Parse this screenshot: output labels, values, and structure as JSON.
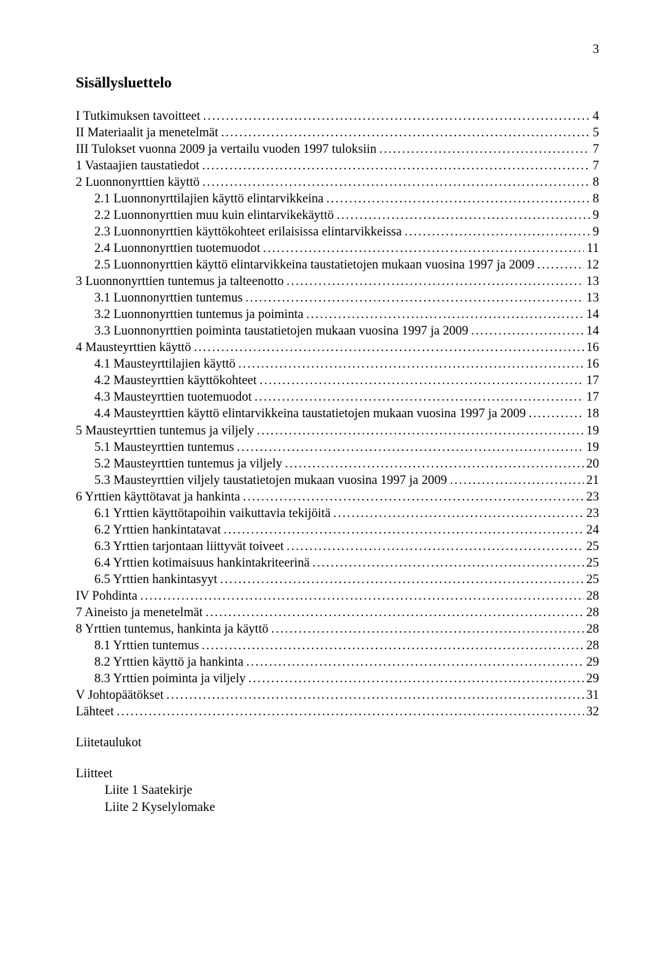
{
  "page_number": "3",
  "toc_title": "Sisällysluettelo",
  "entries": [
    {
      "label": "I Tutkimuksen tavoitteet",
      "page": "4",
      "indent": 0
    },
    {
      "label": "II Materiaalit ja menetelmät",
      "page": "5",
      "indent": 0
    },
    {
      "label": "III Tulokset vuonna 2009 ja vertailu vuoden 1997 tuloksiin",
      "page": "7",
      "indent": 0
    },
    {
      "label": "1 Vastaajien taustatiedot",
      "page": "7",
      "indent": 0
    },
    {
      "label": "2 Luonnonyrttien käyttö",
      "page": "8",
      "indent": 0
    },
    {
      "label": "2.1 Luonnonyrttilajien käyttö elintarvikkeina",
      "page": "8",
      "indent": 1
    },
    {
      "label": "2.2 Luonnonyrttien muu kuin elintarvikekäyttö",
      "page": "9",
      "indent": 1
    },
    {
      "label": "2.3 Luonnonyrttien käyttökohteet erilaisissa elintarvikkeissa",
      "page": "9",
      "indent": 1
    },
    {
      "label": "2.4 Luonnonyrttien tuotemuodot",
      "page": "11",
      "indent": 1
    },
    {
      "label": "2.5 Luonnonyrttien käyttö elintarvikkeina taustatietojen mukaan vuosina 1997 ja 2009",
      "page": "12",
      "indent": 1
    },
    {
      "label": "3 Luonnonyrttien tuntemus ja talteenotto",
      "page": "13",
      "indent": 0
    },
    {
      "label": "3.1 Luonnonyrttien tuntemus",
      "page": "13",
      "indent": 1
    },
    {
      "label": "3.2 Luonnonyrttien tuntemus ja poiminta",
      "page": "14",
      "indent": 1
    },
    {
      "label": "3.3 Luonnonyrttien poiminta taustatietojen mukaan vuosina 1997 ja 2009",
      "page": "14",
      "indent": 1
    },
    {
      "label": "4 Mausteyrttien käyttö",
      "page": "16",
      "indent": 0
    },
    {
      "label": "4.1 Mausteyrttilajien käyttö",
      "page": "16",
      "indent": 1
    },
    {
      "label": "4.2 Mausteyrttien käyttökohteet",
      "page": "17",
      "indent": 1
    },
    {
      "label": "4.3 Mausteyrttien tuotemuodot",
      "page": "17",
      "indent": 1
    },
    {
      "label": "4.4 Mausteyrttien käyttö elintarvikkeina taustatietojen mukaan vuosina 1997 ja 2009",
      "page": "18",
      "indent": 1
    },
    {
      "label": "5 Mausteyrttien tuntemus ja viljely",
      "page": "19",
      "indent": 0
    },
    {
      "label": "5.1 Mausteyrttien tuntemus",
      "page": "19",
      "indent": 1
    },
    {
      "label": "5.2 Mausteyrttien tuntemus ja viljely",
      "page": "20",
      "indent": 1
    },
    {
      "label": "5.3 Mausteyrttien viljely taustatietojen mukaan vuosina 1997 ja 2009",
      "page": "21",
      "indent": 1
    },
    {
      "label": "6 Yrttien käyttötavat ja hankinta",
      "page": "23",
      "indent": 0
    },
    {
      "label": "6.1 Yrttien käyttötapoihin vaikuttavia tekijöitä",
      "page": "23",
      "indent": 1
    },
    {
      "label": "6.2 Yrttien hankintatavat",
      "page": "24",
      "indent": 1
    },
    {
      "label": "6.3 Yrttien tarjontaan liittyvät toiveet",
      "page": "25",
      "indent": 1
    },
    {
      "label": "6.4 Yrttien kotimaisuus hankintakriteerinä",
      "page": "25",
      "indent": 1
    },
    {
      "label": "6.5 Yrttien hankintasyyt",
      "page": "25",
      "indent": 1
    },
    {
      "label": "IV Pohdinta",
      "page": "28",
      "indent": 0
    },
    {
      "label": "7 Aineisto ja menetelmät",
      "page": "28",
      "indent": 0
    },
    {
      "label": "8 Yrttien tuntemus, hankinta ja käyttö",
      "page": "28",
      "indent": 0
    },
    {
      "label": "8.1 Yrttien tuntemus",
      "page": "28",
      "indent": 1
    },
    {
      "label": "8.2 Yrttien käyttö ja hankinta",
      "page": "29",
      "indent": 1
    },
    {
      "label": "8.3 Yrttien poiminta ja viljely",
      "page": "29",
      "indent": 1
    },
    {
      "label": "V Johtopäätökset",
      "page": "31",
      "indent": 0
    },
    {
      "label": "Lähteet",
      "page": "32",
      "indent": 0
    }
  ],
  "appendix": {
    "heading1": "Liitetaulukot",
    "heading2": "Liitteet",
    "items": [
      "Liite 1 Saatekirje",
      "Liite 2 Kyselylomake"
    ]
  }
}
